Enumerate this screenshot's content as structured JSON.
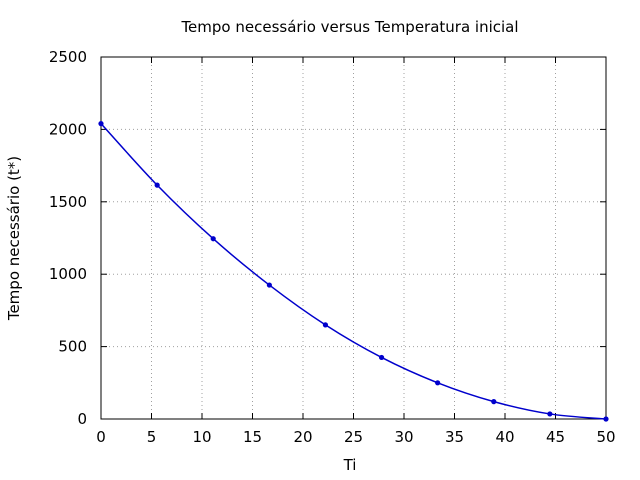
{
  "chart_data": {
    "type": "line",
    "title": "Tempo necessário versus Temperatura inicial",
    "xlabel": "Ti",
    "ylabel": "Tempo necessário (t*)",
    "xlim": [
      0,
      50
    ],
    "ylim": [
      0,
      2500
    ],
    "xticks": [
      0,
      5,
      10,
      15,
      20,
      25,
      30,
      35,
      40,
      45,
      50
    ],
    "yticks": [
      0,
      500,
      1000,
      1500,
      2000,
      2500
    ],
    "grid": true,
    "color": "#0000cc",
    "series": [
      {
        "x": [
          0,
          5.56,
          11.11,
          16.67,
          22.22,
          27.78,
          33.33,
          38.89,
          44.44,
          50
        ],
        "y": [
          2040,
          1615,
          1245,
          925,
          650,
          425,
          250,
          120,
          35,
          0
        ]
      }
    ]
  }
}
